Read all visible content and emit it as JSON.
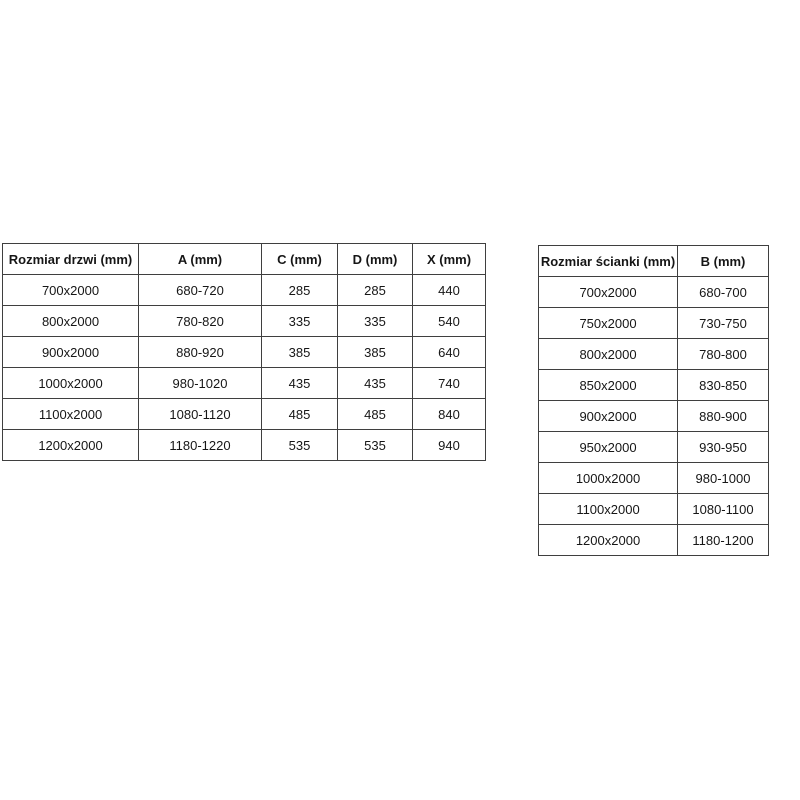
{
  "page": {
    "background": "#ffffff"
  },
  "colors": {
    "table_border": "#3f3f3f",
    "text": "#161616"
  },
  "tables": [
    {
      "name": "door-size-table",
      "headers": [
        "Rozmiar drzwi (mm)",
        "A (mm)",
        "C (mm)",
        "D (mm)",
        "X (mm)"
      ],
      "rows": [
        [
          "700x2000",
          "680-720",
          "285",
          "285",
          "440"
        ],
        [
          "800x2000",
          "780-820",
          "335",
          "335",
          "540"
        ],
        [
          "900x2000",
          "880-920",
          "385",
          "385",
          "640"
        ],
        [
          "1000x2000",
          "980-1020",
          "435",
          "435",
          "740"
        ],
        [
          "1100x2000",
          "1080-1120",
          "485",
          "485",
          "840"
        ],
        [
          "1200x2000",
          "1180-1220",
          "535",
          "535",
          "940"
        ]
      ]
    },
    {
      "name": "wall-size-table",
      "headers": [
        "Rozmiar ścianki (mm)",
        "B (mm)"
      ],
      "rows": [
        [
          "700x2000",
          "680-700"
        ],
        [
          "750x2000",
          "730-750"
        ],
        [
          "800x2000",
          "780-800"
        ],
        [
          "850x2000",
          "830-850"
        ],
        [
          "900x2000",
          "880-900"
        ],
        [
          "950x2000",
          "930-950"
        ],
        [
          "1000x2000",
          "980-1000"
        ],
        [
          "1100x2000",
          "1080-1100"
        ],
        [
          "1200x2000",
          "1180-1200"
        ]
      ]
    }
  ]
}
